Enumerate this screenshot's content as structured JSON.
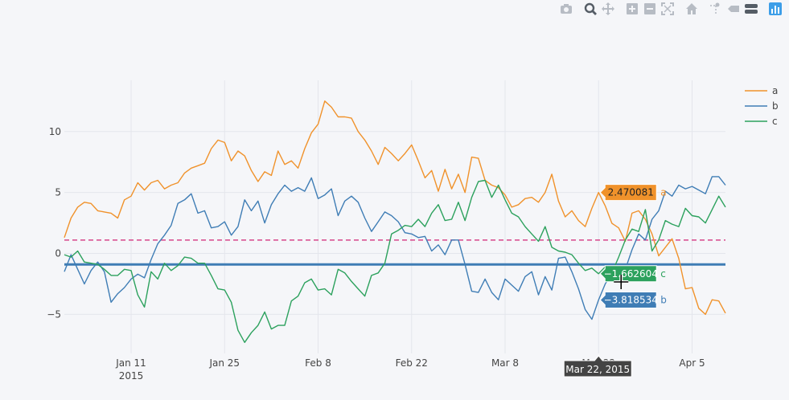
{
  "modebar": {
    "icons": [
      "camera-icon",
      "zoom-icon",
      "pan-icon",
      "zoom-in-icon",
      "zoom-out-icon",
      "autoscale-icon",
      "home-icon",
      "spike-lines-icon",
      "hover-closest-icon",
      "hover-compare-icon",
      "plotly-logo-icon"
    ]
  },
  "chart_data": {
    "type": "line",
    "x_start": "2015-01-01",
    "x_end": "2015-04-10",
    "x_ticks": [
      {
        "date": "2015-01-11",
        "label": "Jan 11",
        "sub": "2015"
      },
      {
        "date": "2015-01-25",
        "label": "Jan 25"
      },
      {
        "date": "2015-02-08",
        "label": "Feb 8"
      },
      {
        "date": "2015-02-22",
        "label": "Feb 22"
      },
      {
        "date": "2015-03-08",
        "label": "Mar 8"
      },
      {
        "date": "2015-03-22",
        "label": "Mar 22"
      },
      {
        "date": "2015-04-05",
        "label": "Apr 5"
      }
    ],
    "ylim": [
      -8.2,
      14.2
    ],
    "y_ticks": [
      -5,
      0,
      5,
      10
    ],
    "grid": true,
    "legend_position": "top-right",
    "series": [
      {
        "name": "a",
        "color": "#f0922b",
        "values": [
          1.3,
          2.9,
          3.8,
          4.2,
          4.1,
          3.5,
          3.4,
          3.3,
          2.9,
          4.4,
          4.7,
          5.8,
          5.2,
          5.8,
          6.0,
          5.3,
          5.6,
          5.8,
          6.6,
          7.0,
          7.2,
          7.4,
          8.6,
          9.3,
          9.1,
          7.6,
          8.4,
          8.0,
          6.8,
          5.9,
          6.7,
          6.4,
          8.4,
          7.3,
          7.6,
          7.0,
          8.6,
          9.9,
          10.6,
          12.5,
          12.0,
          11.2,
          11.2,
          11.1,
          10.0,
          9.3,
          8.4,
          7.3,
          8.7,
          8.2,
          7.6,
          8.2,
          8.9,
          7.6,
          6.2,
          6.8,
          5.1,
          6.9,
          5.3,
          6.5,
          5.0,
          7.9,
          7.8,
          6.0,
          5.6,
          5.4,
          4.8,
          3.8,
          4.0,
          4.5,
          4.6,
          4.2,
          5.0,
          6.5,
          4.3,
          3.0,
          3.5,
          2.7,
          2.2,
          3.7,
          5.0,
          3.9,
          2.470081,
          2.1,
          1.0,
          3.3,
          3.5,
          2.8,
          1.6,
          -0.2,
          0.5,
          1.2,
          -0.4,
          -2.9,
          -2.8,
          -4.5,
          -5.0,
          -3.8,
          -3.9,
          -4.9
        ]
      },
      {
        "name": "b",
        "color": "#3f7db5",
        "values": [
          -1.5,
          -0.1,
          -1.3,
          -2.5,
          -1.4,
          -0.7,
          -1.5,
          -4.0,
          -3.3,
          -2.8,
          -2.1,
          -1.7,
          -2.0,
          -0.5,
          0.8,
          1.5,
          2.3,
          4.1,
          4.4,
          4.9,
          3.3,
          3.5,
          2.1,
          2.2,
          2.6,
          1.5,
          2.2,
          4.4,
          3.5,
          4.3,
          2.5,
          4.0,
          4.9,
          5.6,
          5.1,
          5.4,
          5.1,
          6.2,
          4.5,
          4.8,
          5.3,
          3.1,
          4.3,
          4.7,
          4.2,
          2.9,
          1.8,
          2.6,
          3.4,
          3.1,
          2.6,
          1.7,
          1.6,
          1.3,
          1.4,
          0.2,
          0.7,
          -0.1,
          1.1,
          1.1,
          -0.9,
          -3.1,
          -3.2,
          -2.1,
          -3.2,
          -3.8,
          -2.1,
          -2.6,
          -3.1,
          -1.9,
          -1.5,
          -3.4,
          -1.9,
          -3.0,
          -0.4,
          -0.3,
          -1.5,
          -2.9,
          -4.6,
          -5.4,
          -3.818534,
          -2.5,
          -1.6,
          -1.0,
          -1.3,
          0.3,
          1.6,
          1.1,
          2.8,
          3.5,
          5.1,
          4.7,
          5.6,
          5.3,
          5.5,
          5.2,
          4.9,
          6.3,
          6.3,
          5.6
        ]
      },
      {
        "name": "c",
        "color": "#2ca15d",
        "values": [
          -0.1,
          -0.3,
          0.2,
          -0.7,
          -0.8,
          -0.9,
          -1.3,
          -1.8,
          -1.8,
          -1.3,
          -1.4,
          -3.4,
          -4.4,
          -1.5,
          -2.1,
          -0.8,
          -1.4,
          -1.0,
          -0.3,
          -0.4,
          -0.8,
          -0.8,
          -1.8,
          -2.9,
          -3.0,
          -4.0,
          -6.3,
          -7.3,
          -6.5,
          -5.9,
          -4.8,
          -6.2,
          -5.9,
          -5.9,
          -3.9,
          -3.5,
          -2.4,
          -2.1,
          -3.0,
          -2.9,
          -3.4,
          -1.3,
          -1.6,
          -2.3,
          -2.9,
          -3.5,
          -1.8,
          -1.6,
          -0.8,
          1.6,
          1.9,
          2.3,
          2.2,
          2.8,
          2.2,
          3.3,
          4.0,
          2.7,
          2.8,
          4.2,
          2.7,
          4.6,
          5.9,
          6.0,
          4.6,
          5.6,
          4.4,
          3.3,
          3.0,
          2.2,
          1.6,
          1.0,
          2.2,
          0.5,
          0.2,
          0.1,
          -0.1,
          -0.8,
          -1.4,
          -1.2,
          -1.662604,
          -1.1,
          -1.6,
          -0.3,
          1.1,
          2.0,
          1.8,
          3.6,
          0.2,
          1.1,
          2.7,
          2.4,
          2.2,
          3.7,
          3.1,
          3.0,
          2.5,
          3.6,
          4.7,
          3.8
        ]
      }
    ],
    "shapes": [
      {
        "y": 1.1,
        "color": "#d6468a",
        "style": "dashed"
      },
      {
        "y": -0.9,
        "color": "#3f7db5",
        "style": "solid"
      }
    ],
    "hover": {
      "date": "2015-03-22",
      "x_label": "Mar 22, 2015",
      "values": [
        {
          "series": "a",
          "value": "2.470081"
        },
        {
          "series": "c",
          "value": "−1.662604"
        },
        {
          "series": "b",
          "value": "−3.818534"
        }
      ]
    }
  }
}
